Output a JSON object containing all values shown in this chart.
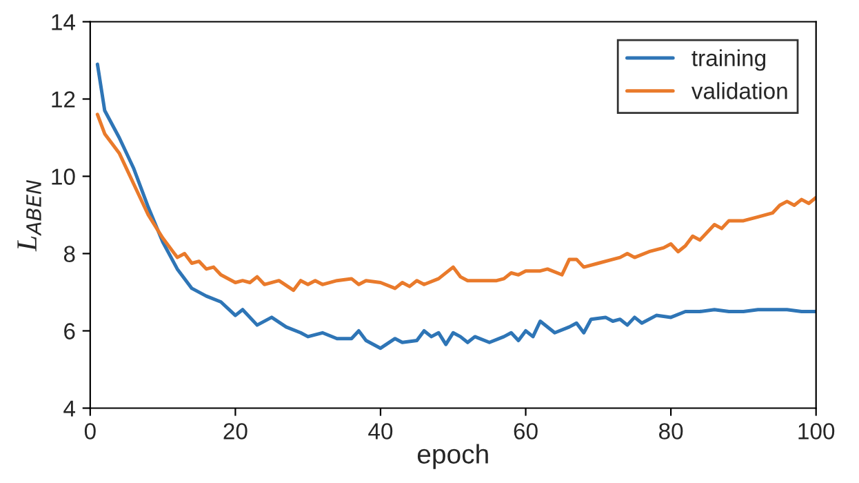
{
  "chart_data": {
    "type": "line",
    "xlabel": "epoch",
    "ylabel": "L$_{ABEN}$",
    "xlim": [
      0,
      100
    ],
    "xticks": [
      0,
      20,
      40,
      60,
      80,
      100
    ],
    "ylim": [
      4,
      14
    ],
    "yticks": [
      4,
      6,
      8,
      10,
      12,
      14
    ],
    "grid": false,
    "legend": "top right",
    "marker": "none",
    "line_style": "solid",
    "series": [
      {
        "name": "training",
        "color": "#2e75b6",
        "x": [
          1,
          2,
          4,
          6,
          8,
          10,
          12,
          14,
          16,
          18,
          20,
          21,
          23,
          25,
          27,
          29,
          30,
          32,
          34,
          36,
          37,
          38,
          40,
          42,
          43,
          45,
          46,
          47,
          48,
          49,
          50,
          51,
          52,
          53,
          55,
          57,
          58,
          59,
          60,
          61,
          62,
          64,
          66,
          67,
          68,
          69,
          71,
          72,
          73,
          74,
          75,
          76,
          78,
          80,
          82,
          84,
          86,
          88,
          90,
          92,
          94,
          96,
          98,
          100
        ],
        "values": [
          12.9,
          11.7,
          11.0,
          10.2,
          9.2,
          8.3,
          7.6,
          7.1,
          6.9,
          6.75,
          6.4,
          6.55,
          6.15,
          6.35,
          6.1,
          5.95,
          5.85,
          5.95,
          5.8,
          5.8,
          6.0,
          5.75,
          5.55,
          5.8,
          5.7,
          5.75,
          6.0,
          5.85,
          5.95,
          5.65,
          5.95,
          5.85,
          5.7,
          5.85,
          5.7,
          5.85,
          5.95,
          5.75,
          6.0,
          5.85,
          6.25,
          5.95,
          6.1,
          6.2,
          5.95,
          6.3,
          6.35,
          6.25,
          6.3,
          6.15,
          6.35,
          6.2,
          6.4,
          6.35,
          6.5,
          6.5,
          6.55,
          6.5,
          6.5,
          6.55,
          6.55,
          6.55,
          6.5,
          6.5
        ]
      },
      {
        "name": "validation",
        "color": "#e97a2b",
        "x": [
          1,
          2,
          4,
          6,
          8,
          10,
          12,
          13,
          14,
          15,
          16,
          17,
          18,
          20,
          21,
          22,
          23,
          24,
          26,
          28,
          29,
          30,
          31,
          32,
          34,
          36,
          37,
          38,
          40,
          42,
          43,
          44,
          45,
          46,
          48,
          50,
          51,
          52,
          54,
          56,
          57,
          58,
          59,
          60,
          62,
          63,
          65,
          66,
          67,
          68,
          70,
          72,
          73,
          74,
          75,
          77,
          79,
          80,
          81,
          82,
          83,
          84,
          86,
          87,
          88,
          90,
          92,
          94,
          95,
          96,
          97,
          98,
          99,
          100
        ],
        "values": [
          11.6,
          11.1,
          10.6,
          9.8,
          9.0,
          8.4,
          7.9,
          8.0,
          7.75,
          7.8,
          7.6,
          7.65,
          7.45,
          7.25,
          7.3,
          7.25,
          7.4,
          7.2,
          7.3,
          7.05,
          7.3,
          7.2,
          7.3,
          7.2,
          7.3,
          7.35,
          7.2,
          7.3,
          7.25,
          7.1,
          7.25,
          7.15,
          7.3,
          7.2,
          7.35,
          7.65,
          7.4,
          7.3,
          7.3,
          7.3,
          7.35,
          7.5,
          7.45,
          7.55,
          7.55,
          7.6,
          7.45,
          7.85,
          7.85,
          7.65,
          7.75,
          7.85,
          7.9,
          8.0,
          7.9,
          8.05,
          8.15,
          8.25,
          8.05,
          8.2,
          8.45,
          8.35,
          8.75,
          8.65,
          8.85,
          8.85,
          8.95,
          9.05,
          9.25,
          9.35,
          9.25,
          9.4,
          9.3,
          9.45
        ]
      }
    ]
  }
}
